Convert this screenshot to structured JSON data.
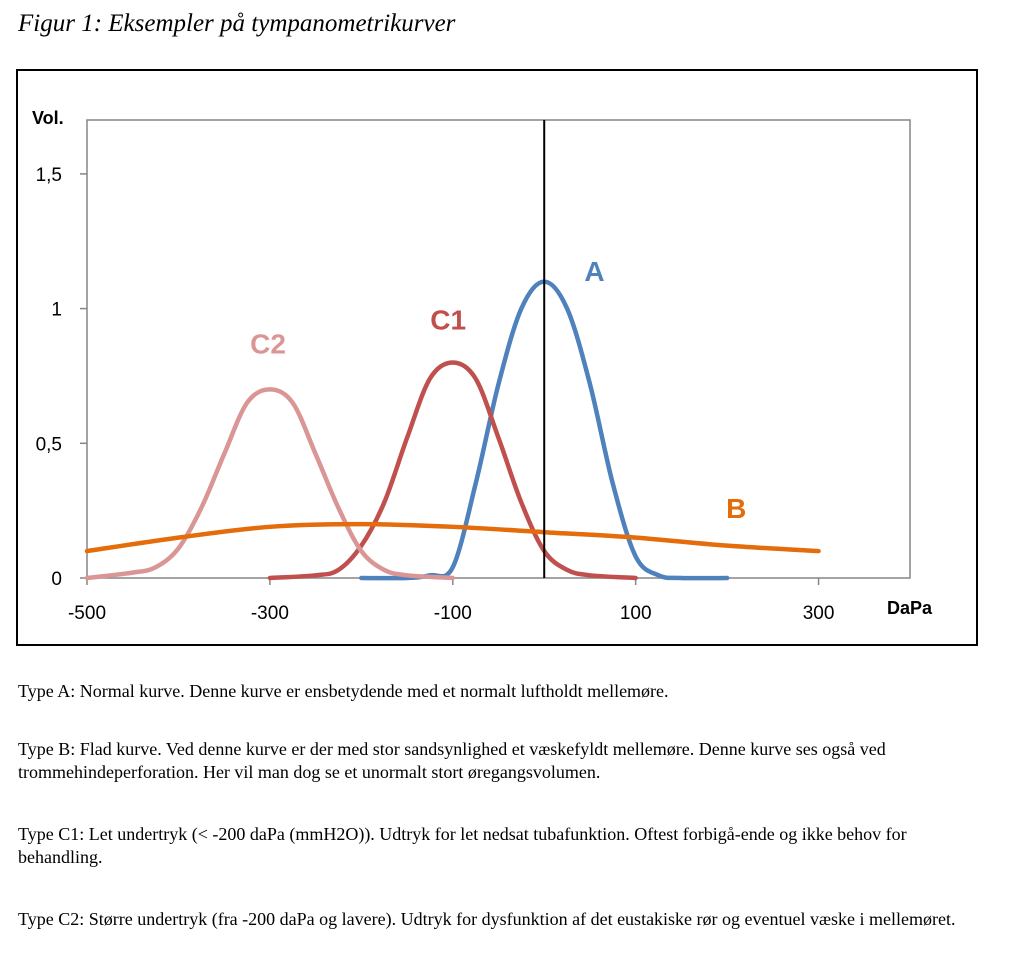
{
  "figure_title": "Figur 1: Eksempler på tympanometrikurver",
  "chart_data": {
    "type": "line",
    "title": "Figur 1: Eksempler på tympanometrikurver",
    "xlabel": "DaPa",
    "ylabel": "Vol.",
    "xlim": [
      -500,
      400
    ],
    "ylim": [
      0,
      1.7
    ],
    "xticks": [
      -500,
      -300,
      -100,
      100,
      300
    ],
    "xtick_labels": [
      "-500",
      "-300",
      "-100",
      "100",
      "300"
    ],
    "yticks": [
      0,
      0.5,
      1,
      1.5
    ],
    "ytick_labels": [
      "0",
      "0,5",
      "1",
      "1,5"
    ],
    "reference_line_x": 0,
    "grid": false,
    "series": [
      {
        "name": "A",
        "color": "#4f81bd",
        "label_at": [
          55,
          1.14
        ],
        "x": [
          -200,
          -150,
          -125,
          -100,
          -75,
          -50,
          -25,
          0,
          25,
          50,
          75,
          100,
          125,
          150,
          200
        ],
        "y": [
          0,
          0,
          0.01,
          0.04,
          0.35,
          0.72,
          1.0,
          1.1,
          1.0,
          0.72,
          0.35,
          0.08,
          0.01,
          0,
          0
        ]
      },
      {
        "name": "C1",
        "color": "#c0504d",
        "label_at": [
          -105,
          0.96
        ],
        "x": [
          -300,
          -250,
          -225,
          -200,
          -175,
          -150,
          -125,
          -100,
          -75,
          -50,
          -25,
          0,
          25,
          50,
          100
        ],
        "y": [
          0,
          0.01,
          0.03,
          0.12,
          0.28,
          0.52,
          0.74,
          0.8,
          0.74,
          0.52,
          0.28,
          0.1,
          0.03,
          0.01,
          0
        ]
      },
      {
        "name": "C2",
        "color": "#d99694",
        "label_at": [
          -302,
          0.87
        ],
        "x": [
          -500,
          -450,
          -425,
          -400,
          -375,
          -350,
          -325,
          -300,
          -275,
          -250,
          -225,
          -200,
          -175,
          -150,
          -100
        ],
        "y": [
          0,
          0.02,
          0.04,
          0.11,
          0.26,
          0.46,
          0.65,
          0.7,
          0.65,
          0.46,
          0.26,
          0.1,
          0.03,
          0.01,
          0
        ]
      },
      {
        "name": "B",
        "color": "#e46c0a",
        "label_at": [
          210,
          0.26
        ],
        "x": [
          -500,
          -400,
          -300,
          -200,
          -100,
          0,
          100,
          200,
          300
        ],
        "y": [
          0.1,
          0.15,
          0.19,
          0.2,
          0.19,
          0.17,
          0.15,
          0.12,
          0.1
        ]
      }
    ]
  },
  "paragraphs": [
    "Type A: Normal kurve. Denne kurve er ensbetydende med et normalt luftholdt mellemøre.",
    "Type B: Flad kurve. Ved denne kurve er der med stor sandsynlighed et væskefyldt mellemøre. Denne kurve ses også ved trommehindeperforation. Her vil man dog se et unormalt stort øregangsvolumen.",
    "Type C1: Let undertryk (< -200 daPa (mmH2O)). Udtryk for let nedsat tubafunktion. Oftest forbigå-ende og ikke behov for behandling.",
    "Type C2: Større undertryk (fra -200 daPa og lavere). Udtryk for dysfunktion af det eustakiske rør og eventuel væske i mellemøret."
  ]
}
